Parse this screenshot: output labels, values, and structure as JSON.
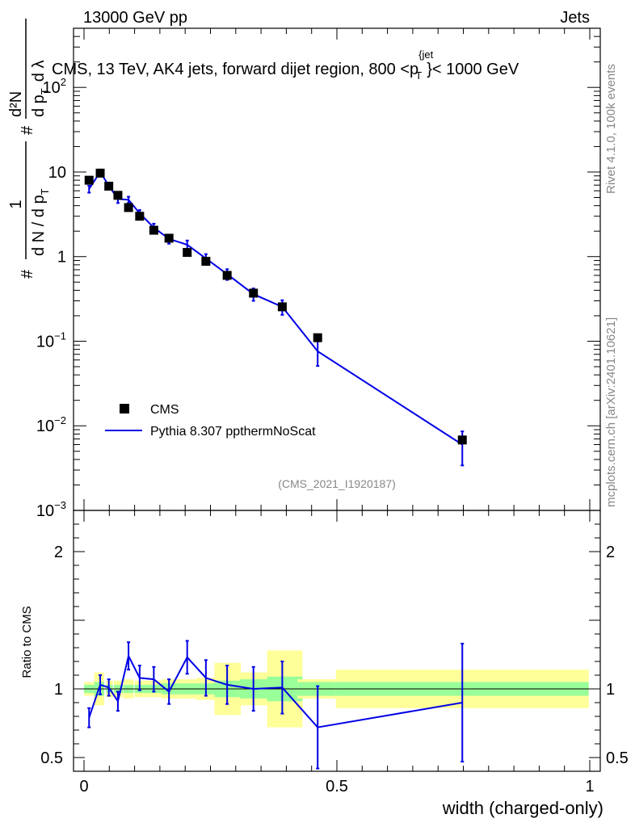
{
  "header": {
    "left": "13000 GeV pp",
    "right": "Jets"
  },
  "title": "CMS, 13 TeV, AK4 jets, forward dijet region, 800 <p",
  "title_sup": "{jet",
  "title_sub": "T",
  "title_end": "}< 1000 GeV",
  "side_texts": {
    "rivet": "Rivet 4.1.0,  100k events",
    "mcplots": "mcplots.cern.ch [arXiv:2401.10621]"
  },
  "watermark": "(CMS_2021_I1920187)",
  "ylabel_parts": {
    "hash1": "#",
    "frac_top": "1",
    "frac_bot": "d N / d p",
    "frac_bot_sub": "T",
    "hash2": "#",
    "d2": "d²N",
    "dpt": "d p",
    "dpt_sub": "T",
    "dl": "d λ"
  },
  "legend": {
    "data_label": "CMS",
    "mc_label": "Pythia 8.307 ppthermNoScat"
  },
  "colors": {
    "mc": "#0000e6",
    "band_inner": "#99ff99",
    "band_outer": "#ffff99"
  },
  "chart_data": {
    "type": "line",
    "xlabel": "width (charged-only)",
    "xlim": [
      0,
      1
    ],
    "xticks": [
      {
        "v": 0,
        "label": "0"
      },
      {
        "v": 0.5,
        "label": "0.5"
      },
      {
        "v": 1,
        "label": "1"
      }
    ],
    "main": {
      "yscale": "log",
      "ylim": [
        0.001,
        500
      ],
      "yticks": [
        {
          "v": 0.001,
          "label": "10",
          "exp": "−3"
        },
        {
          "v": 0.01,
          "label": "10",
          "exp": "−2"
        },
        {
          "v": 0.1,
          "label": "10",
          "exp": "−1"
        },
        {
          "v": 1,
          "label": "1",
          "exp": ""
        },
        {
          "v": 10,
          "label": "10",
          "exp": ""
        },
        {
          "v": 100,
          "label": "10",
          "exp": "2"
        }
      ]
    },
    "ratio": {
      "ylabel": "Ratio to CMS",
      "ylim": [
        0.4,
        2.3
      ],
      "yticks": [
        {
          "v": 0.5,
          "label": "0.5"
        },
        {
          "v": 1,
          "label": "1"
        },
        {
          "v": 2,
          "label": "2"
        }
      ]
    },
    "series": [
      {
        "name": "CMS",
        "x": [
          0.01,
          0.032,
          0.049,
          0.067,
          0.088,
          0.11,
          0.138,
          0.168,
          0.204,
          0.241,
          0.283,
          0.335,
          0.392,
          0.462,
          0.748
        ],
        "xerr_lo": [
          0.01,
          0.012,
          0.005,
          0.008,
          0.01,
          0.01,
          0.016,
          0.015,
          0.018,
          0.019,
          0.025,
          0.027,
          0.03,
          0.04,
          0.25
        ],
        "xerr_hi": [
          0.01,
          0.008,
          0.008,
          0.01,
          0.01,
          0.016,
          0.015,
          0.018,
          0.019,
          0.025,
          0.027,
          0.03,
          0.04,
          0.04,
          0.25
        ],
        "y": [
          8.0,
          9.7,
          6.8,
          5.3,
          3.8,
          3.0,
          2.05,
          1.65,
          1.12,
          0.88,
          0.6,
          0.37,
          0.255,
          0.11,
          0.0068
        ],
        "band_inner": [
          0.03,
          0.05,
          0.03,
          0.03,
          0.03,
          0.03,
          0.03,
          0.04,
          0.04,
          0.04,
          0.06,
          0.07,
          0.09,
          0.05,
          0.05
        ],
        "band_outer": [
          0.05,
          0.12,
          0.06,
          0.06,
          0.07,
          0.06,
          0.06,
          0.07,
          0.07,
          0.08,
          0.19,
          0.12,
          0.28,
          0.07,
          0.14
        ]
      },
      {
        "name": "Pythia 8.307 ppthermNoScat",
        "x": [
          0.01,
          0.032,
          0.049,
          0.067,
          0.088,
          0.11,
          0.138,
          0.168,
          0.204,
          0.241,
          0.283,
          0.335,
          0.392,
          0.462,
          0.748
        ],
        "y": [
          6.3,
          10.0,
          6.9,
          4.8,
          4.7,
          3.25,
          2.2,
          1.62,
          1.38,
          0.95,
          0.62,
          0.36,
          0.255,
          0.076,
          0.006
        ],
        "yerr": [
          0.6,
          0.7,
          0.5,
          0.5,
          0.4,
          0.3,
          0.25,
          0.2,
          0.17,
          0.12,
          0.09,
          0.06,
          0.05,
          0.025,
          0.0026
        ],
        "ratio": [
          0.79,
          1.03,
          1.01,
          0.91,
          1.24,
          1.08,
          1.07,
          0.98,
          1.23,
          1.08,
          1.03,
          1.0,
          1.01,
          0.72,
          0.9
        ],
        "ratio_err": [
          0.07,
          0.07,
          0.06,
          0.07,
          0.1,
          0.09,
          0.09,
          0.09,
          0.12,
          0.13,
          0.14,
          0.16,
          0.19,
          0.3,
          0.43
        ]
      }
    ]
  }
}
